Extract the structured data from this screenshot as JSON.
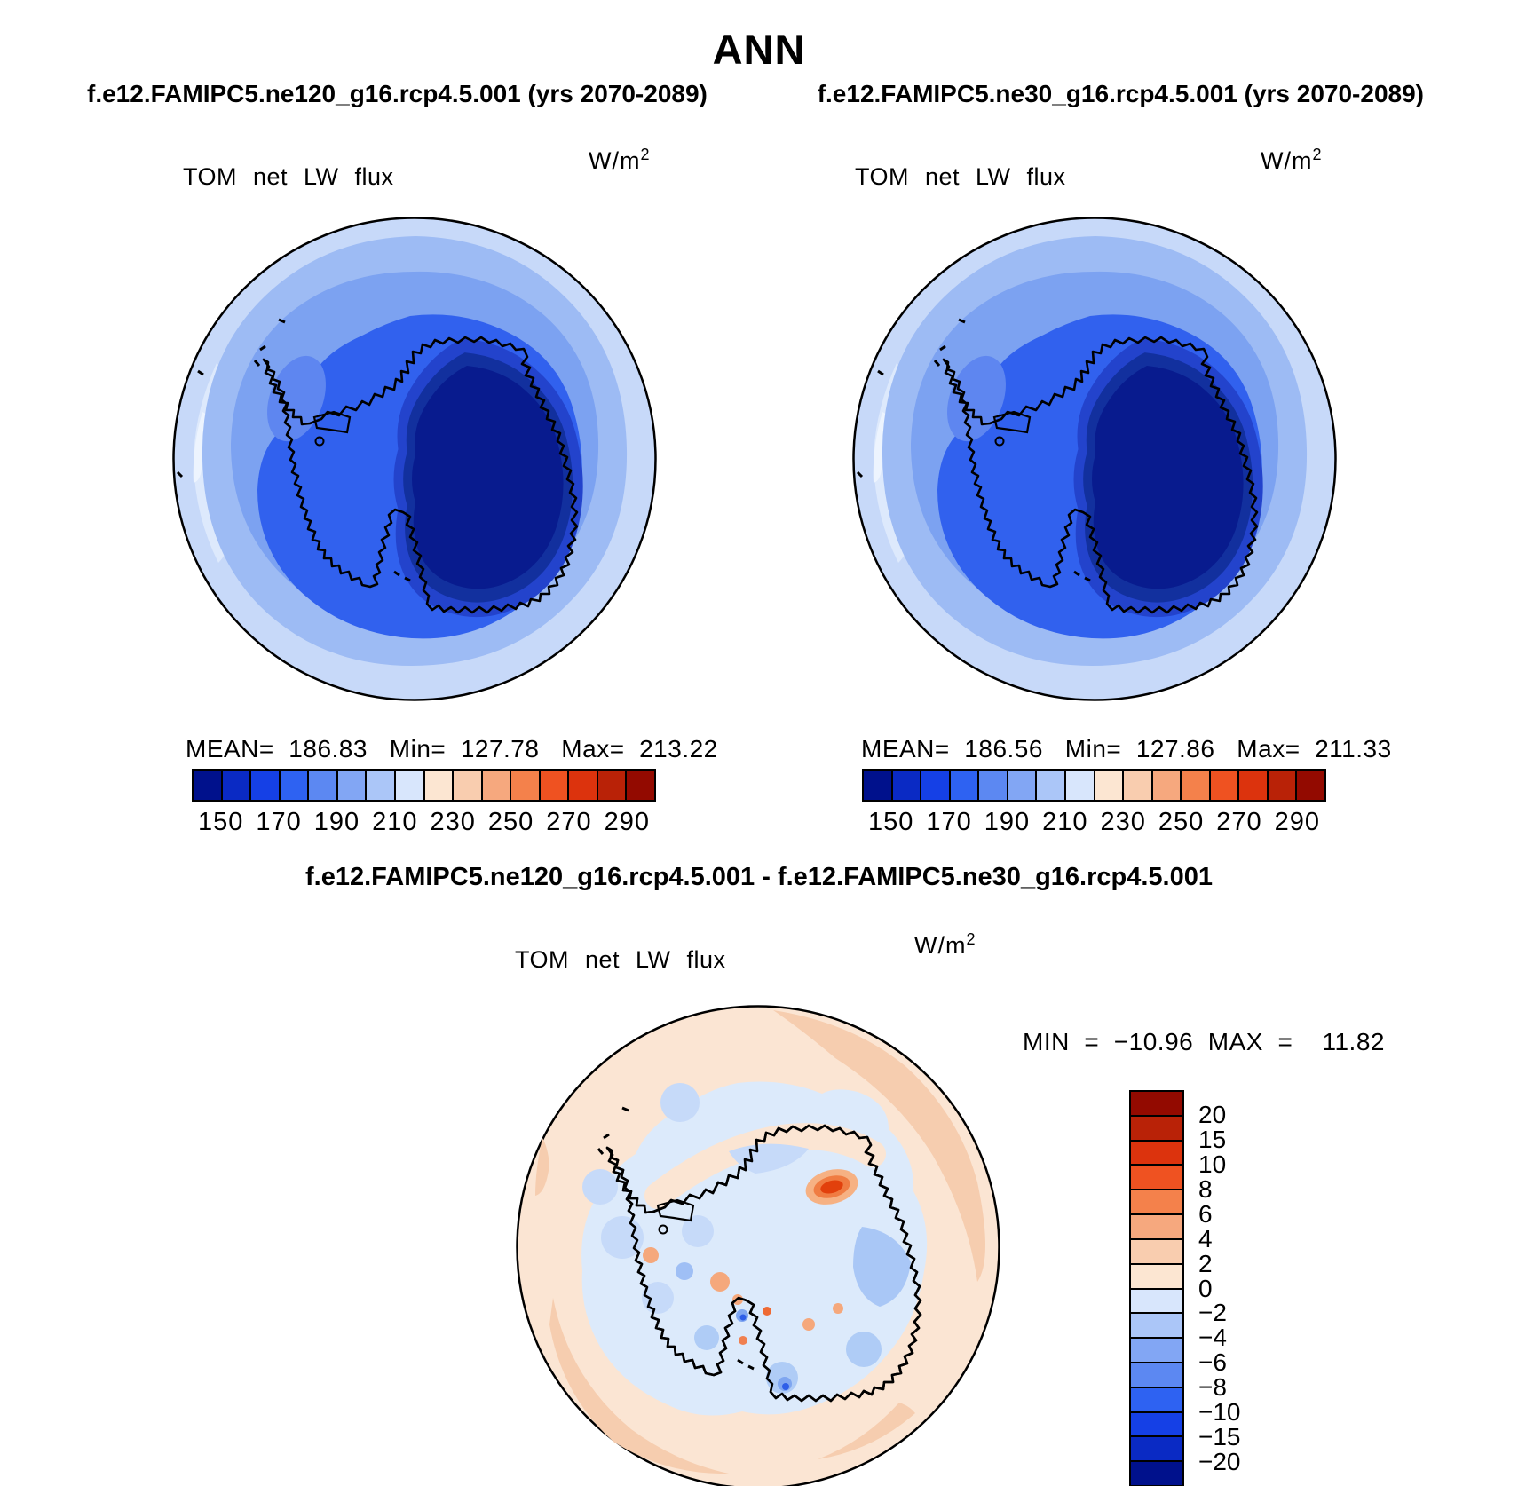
{
  "page": {
    "title": "ANN",
    "background": "#ffffff"
  },
  "header": {
    "left_run": "f.e12.FAMIPC5.ne120_g16.rcp4.5.001 (yrs 2070-2089)",
    "right_run": "f.e12.FAMIPC5.ne30_g16.rcp4.5.001 (yrs 2070-2089)"
  },
  "diff_header": "f.e12.FAMIPC5.ne120_g16.rcp4.5.001 - f.e12.FAMIPC5.ne30_g16.rcp4.5.001",
  "field_label": "TOM net LW flux",
  "units": {
    "base": "W/m",
    "exp": "2"
  },
  "panels": {
    "left": {
      "stats": "MEAN=  186.83   Min=  127.78   Max=  213.22"
    },
    "right": {
      "stats": "MEAN=  186.56   Min=  127.86   Max=  211.33"
    },
    "diff": {
      "stats": "MIN  =  −10.96  MAX  =    11.82"
    }
  },
  "colorbar": {
    "ticks": [
      "150",
      "170",
      "190",
      "210",
      "230",
      "250",
      "270",
      "290"
    ]
  },
  "diff_colorbar": {
    "ticks": [
      "20",
      "15",
      "10",
      "8",
      "6",
      "4",
      "2",
      "0",
      "−2",
      "−4",
      "−6",
      "−8",
      "−10",
      "−15",
      "−20"
    ]
  },
  "palette": [
    "#00118C",
    "#0A2AC4",
    "#1540E6",
    "#2E62F2",
    "#5C88F2",
    "#82A6F4",
    "#ABC6F8",
    "#D8E6FC",
    "#FCE6D2",
    "#F9CDAF",
    "#F6A87E",
    "#F4814B",
    "#EF5221",
    "#DC330D",
    "#B92207",
    "#930A00"
  ],
  "top_map_colors": {
    "outer_ring": "#C7D9F9",
    "pale_edge": "#DDE9FC",
    "palest_edge": "#EDF4FE",
    "ring2": "#9DBBF4",
    "ring3": "#7CA2F1",
    "near_coast": "#3161EE",
    "peninsula_shelf": "#5E86F0",
    "inland_1": "#2343CC",
    "inland_2": "#12309E",
    "ice_core": "#081B8E",
    "coastline": "#000000"
  },
  "diff_map_colors": {
    "ocean_bg": "#FBE5D3",
    "peach_band": "#F6CDAF",
    "pale_blue": "#DCEAFB",
    "continent_fill": "#FCEBDE",
    "blue_patch": "#AFCCF6",
    "deep_blue_patch": "#7FA6F0",
    "dark_blue_spot": "#2E5EE8",
    "orange_spot": "#F5A87C",
    "red_core": "#E2400C",
    "red_halo": "#F07C42",
    "red_outer": "#F6B183",
    "coastline": "#000000"
  },
  "chart_data": [
    {
      "type": "heatmap",
      "panel": "top-left",
      "title": "TOM net LW flux",
      "units": "W/m^2",
      "run": "f.e12.FAMIPC5.ne120_g16.rcp4.5.001",
      "years": "2070-2089",
      "projection": "south polar stereographic (Antarctica)",
      "stats": {
        "mean": 186.83,
        "min": 127.78,
        "max": 213.22
      },
      "levels": [
        140,
        150,
        160,
        170,
        180,
        190,
        200,
        210,
        220,
        230,
        240,
        250,
        260,
        270,
        280,
        290,
        300
      ],
      "colorbar_ticks": [
        150,
        170,
        190,
        210,
        230,
        250,
        270,
        290
      ],
      "legend_position": "below",
      "palette": "blue-to-red, 16 classes"
    },
    {
      "type": "heatmap",
      "panel": "top-right",
      "title": "TOM net LW flux",
      "units": "W/m^2",
      "run": "f.e12.FAMIPC5.ne30_g16.rcp4.5.001",
      "years": "2070-2089",
      "projection": "south polar stereographic (Antarctica)",
      "stats": {
        "mean": 186.56,
        "min": 127.86,
        "max": 211.33
      },
      "levels": [
        140,
        150,
        160,
        170,
        180,
        190,
        200,
        210,
        220,
        230,
        240,
        250,
        260,
        270,
        280,
        290,
        300
      ],
      "colorbar_ticks": [
        150,
        170,
        190,
        210,
        230,
        250,
        270,
        290
      ],
      "legend_position": "below",
      "palette": "blue-to-red, 16 classes"
    },
    {
      "type": "heatmap",
      "panel": "bottom-difference",
      "title": "TOM net LW flux",
      "units": "W/m^2",
      "run": "f.e12.FAMIPC5.ne120_g16.rcp4.5.001 minus f.e12.FAMIPC5.ne30_g16.rcp4.5.001",
      "projection": "south polar stereographic (Antarctica)",
      "stats": {
        "min": -10.96,
        "max": 11.82
      },
      "levels": [
        -20,
        -15,
        -10,
        -8,
        -6,
        -4,
        -2,
        0,
        2,
        4,
        6,
        8,
        10,
        15,
        20
      ],
      "colorbar_ticks": [
        20,
        15,
        10,
        8,
        6,
        4,
        2,
        0,
        -2,
        -4,
        -6,
        -8,
        -10,
        -15,
        -20
      ],
      "legend_position": "right vertical",
      "palette": "blue-to-red, 16 classes"
    }
  ]
}
